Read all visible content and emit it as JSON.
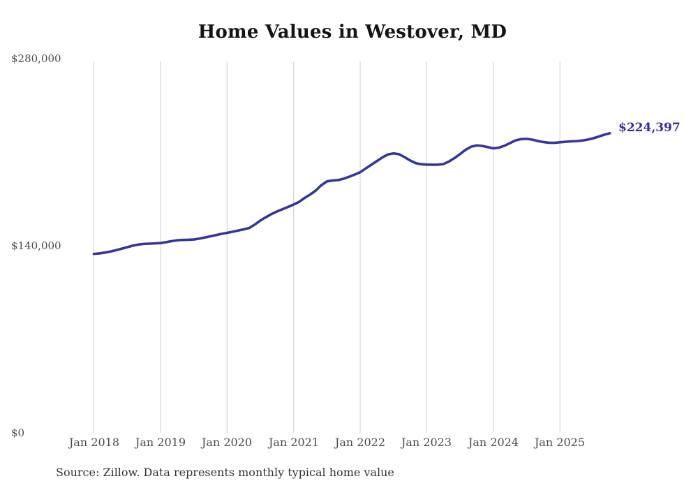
{
  "title": "Home Values in Westover, MD",
  "source_note": "Source: Zillow. Data represents monthly typical home value",
  "end_label": "$224,397",
  "colors": {
    "line": "#34349e",
    "end_label_text": "#2e2e9c",
    "gridline": "#cccccc",
    "axis_text": "#4a4a4a",
    "title_text": "#141414"
  },
  "chart_data": {
    "type": "line",
    "title": "Home Values in Westover, MD",
    "xlabel": "",
    "ylabel": "",
    "ylim": [
      0,
      280000
    ],
    "grid": "vertical-only",
    "legend": "none",
    "y_ticks": [
      {
        "value": 0,
        "label": "$0"
      },
      {
        "value": 140000,
        "label": "$140,000"
      },
      {
        "value": 280000,
        "label": "$280,000"
      }
    ],
    "x_ticks": [
      {
        "month_index": 0,
        "label": "Jan 2018"
      },
      {
        "month_index": 12,
        "label": "Jan 2019"
      },
      {
        "month_index": 24,
        "label": "Jan 2020"
      },
      {
        "month_index": 36,
        "label": "Jan 2021"
      },
      {
        "month_index": 48,
        "label": "Jan 2022"
      },
      {
        "month_index": 60,
        "label": "Jan 2023"
      },
      {
        "month_index": 72,
        "label": "Jan 2024"
      },
      {
        "month_index": 84,
        "label": "Jan 2025"
      }
    ],
    "series": [
      {
        "name": "Monthly typical home value",
        "start_month": "2018-01",
        "frequency": "monthly",
        "values": [
          134000,
          134400,
          135000,
          135800,
          136800,
          137900,
          139000,
          140200,
          141000,
          141500,
          141700,
          141900,
          142100,
          142800,
          143600,
          144200,
          144500,
          144600,
          144800,
          145500,
          146300,
          147200,
          148100,
          149000,
          149800,
          150600,
          151500,
          152400,
          153400,
          156000,
          159000,
          161500,
          163800,
          165800,
          167500,
          169200,
          171000,
          173000,
          176000,
          178500,
          181500,
          185500,
          188300,
          189000,
          189300,
          190300,
          191800,
          193400,
          195200,
          198000,
          200800,
          203500,
          206300,
          208500,
          209300,
          208700,
          206500,
          204000,
          202000,
          201200,
          200900,
          200800,
          200800,
          201300,
          203200,
          205800,
          208800,
          212000,
          214300,
          215300,
          214900,
          214000,
          213100,
          213600,
          215000,
          217000,
          219000,
          220000,
          220200,
          219600,
          218600,
          217800,
          217300,
          217200,
          217600,
          218000,
          218300,
          218500,
          218900,
          219600,
          220600,
          221900,
          223300,
          224397
        ]
      }
    ],
    "last_value": 224397,
    "last_value_label": "$224,397"
  }
}
